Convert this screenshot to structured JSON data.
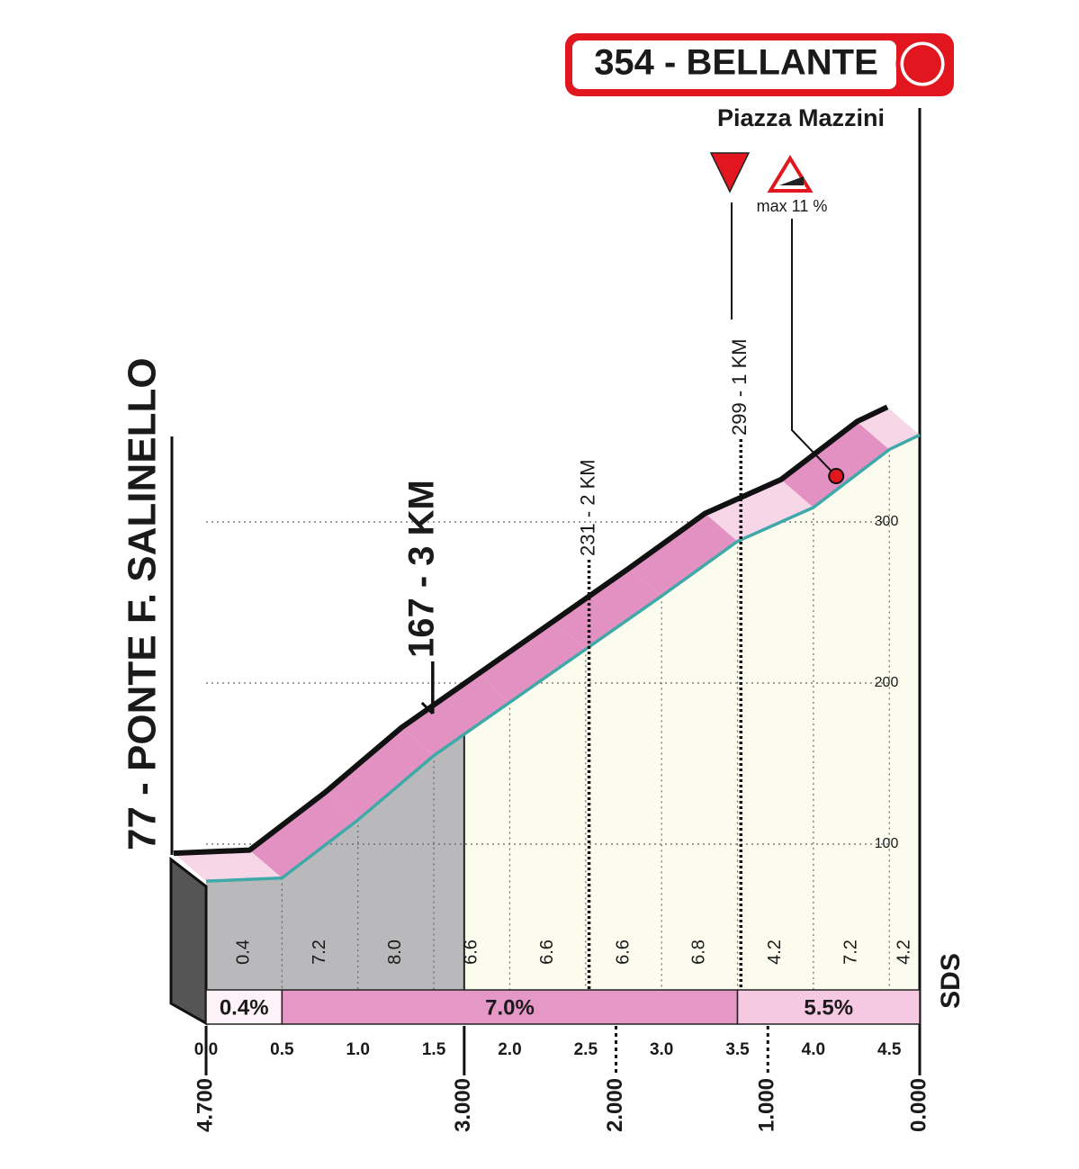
{
  "chart_data": {
    "type": "area",
    "title": "354 - BELLANTE",
    "subtitle": "Piazza Mazzini",
    "x": [
      0,
      0.5,
      1.0,
      1.5,
      2.0,
      2.5,
      3.0,
      3.5,
      4.0,
      4.5,
      4.7
    ],
    "values": [
      77,
      79,
      115,
      155,
      188,
      221,
      254,
      288,
      309,
      345,
      354
    ],
    "color": "#3fa9a9",
    "xlim": [
      0,
      4.7
    ],
    "ylim": [
      0,
      400
    ],
    "xticks": [
      {
        "value": 0,
        "label": "0.0"
      },
      0.5,
      {
        "value": 1,
        "label": "1.0"
      },
      1.5,
      {
        "value": 2,
        "label": "2.0"
      },
      2.5,
      {
        "value": 3,
        "label": "3.0"
      },
      3.5,
      {
        "value": 4,
        "label": "4.0"
      },
      4.5
    ],
    "yticks": [
      100,
      200,
      300
    ],
    "x2lim": [
      4.7,
      0
    ],
    "x2ticks": [
      {
        "value": 4.7,
        "label": "4.700"
      },
      {
        "value": 3,
        "label": "3.000"
      },
      {
        "value": 2,
        "label": "2.000"
      },
      {
        "value": 1,
        "label": "1.000"
      },
      {
        "value": 0,
        "label": "0.000"
      }
    ],
    "grid": true,
    "segment_gradients": {
      "values": [
        0.4,
        7.2,
        8.0,
        6.6,
        6.6,
        6.6,
        6.8,
        4.2,
        7.2,
        4.2
      ],
      "value_labels": [
        "0.4",
        "7.2",
        "8.0",
        "6.6",
        "6.6",
        "6.6",
        "6.8",
        "4.2",
        "7.2",
        "4.2"
      ]
    },
    "summary": {
      "ranges": [
        [
          0,
          0.5
        ],
        [
          0.5,
          3.5
        ],
        [
          3.5,
          4.7
        ]
      ],
      "values": [
        0.4,
        7.0,
        5.5
      ],
      "value_labels": [
        "0.4%",
        "7.0%",
        "5.5%"
      ]
    },
    "markers": [
      {
        "x": 0,
        "label": "77 - PONTE F. SALINELLO"
      },
      {
        "x": 1.7,
        "label": "167 - 3 KM"
      },
      {
        "x": 2.7,
        "label": "231 - 2 KM"
      },
      {
        "x": 3.7,
        "label": "299 - 1 KM"
      }
    ],
    "max_gradient": {
      "x": 4.15,
      "label": "max 11 %"
    },
    "logo": "SDS"
  }
}
